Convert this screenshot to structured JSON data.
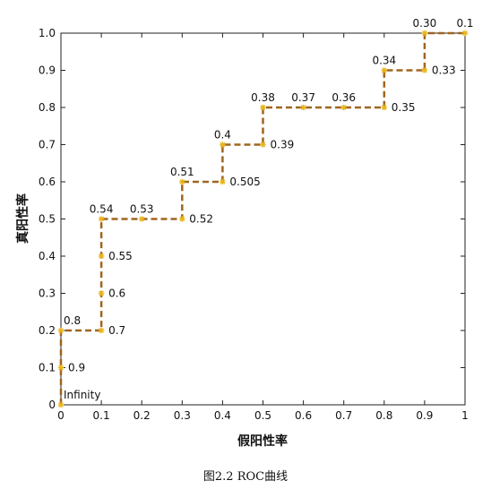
{
  "chart_data": {
    "type": "line",
    "xlabel": "假阳性率",
    "ylabel": "真阳性率",
    "caption": "图2.2    ROC曲线",
    "xlim": [
      0,
      1
    ],
    "ylim": [
      0,
      1
    ],
    "x_ticks": [
      "0",
      "0.1",
      "0.2",
      "0.3",
      "0.4",
      "0.5",
      "0.6",
      "0.7",
      "0.8",
      "0.9",
      "1"
    ],
    "y_ticks": [
      "0",
      "0.1",
      "0.2",
      "0.3",
      "0.4",
      "0.5",
      "0.6",
      "0.7",
      "0.8",
      "0.9",
      "1.0"
    ],
    "grid": false,
    "line_color": "#a0651e",
    "marker_color": "#e8b51a",
    "points": [
      {
        "x": 0.0,
        "y": 0.0,
        "label": "Infinity",
        "pos": "above-right"
      },
      {
        "x": 0.0,
        "y": 0.1,
        "label": "0.9",
        "pos": "right"
      },
      {
        "x": 0.0,
        "y": 0.2,
        "label": "0.8",
        "pos": "above-right"
      },
      {
        "x": 0.1,
        "y": 0.2,
        "label": "0.7",
        "pos": "right"
      },
      {
        "x": 0.1,
        "y": 0.3,
        "label": "0.6",
        "pos": "right"
      },
      {
        "x": 0.1,
        "y": 0.4,
        "label": "0.55",
        "pos": "right"
      },
      {
        "x": 0.1,
        "y": 0.5,
        "label": "0.54",
        "pos": "above"
      },
      {
        "x": 0.2,
        "y": 0.5,
        "label": "0.53",
        "pos": "above"
      },
      {
        "x": 0.3,
        "y": 0.5,
        "label": "0.52",
        "pos": "right"
      },
      {
        "x": 0.3,
        "y": 0.6,
        "label": "0.51",
        "pos": "above"
      },
      {
        "x": 0.4,
        "y": 0.6,
        "label": "0.505",
        "pos": "right"
      },
      {
        "x": 0.4,
        "y": 0.7,
        "label": "0.4",
        "pos": "above"
      },
      {
        "x": 0.5,
        "y": 0.7,
        "label": "0.39",
        "pos": "right"
      },
      {
        "x": 0.5,
        "y": 0.8,
        "label": "0.38",
        "pos": "above"
      },
      {
        "x": 0.6,
        "y": 0.8,
        "label": "0.37",
        "pos": "above"
      },
      {
        "x": 0.7,
        "y": 0.8,
        "label": "0.36",
        "pos": "above"
      },
      {
        "x": 0.8,
        "y": 0.8,
        "label": "0.35",
        "pos": "right"
      },
      {
        "x": 0.8,
        "y": 0.9,
        "label": "0.34",
        "pos": "above"
      },
      {
        "x": 0.9,
        "y": 0.9,
        "label": "0.33",
        "pos": "right"
      },
      {
        "x": 0.9,
        "y": 1.0,
        "label": "0.30",
        "pos": "above"
      },
      {
        "x": 1.0,
        "y": 1.0,
        "label": "0.1",
        "pos": "above"
      }
    ]
  }
}
